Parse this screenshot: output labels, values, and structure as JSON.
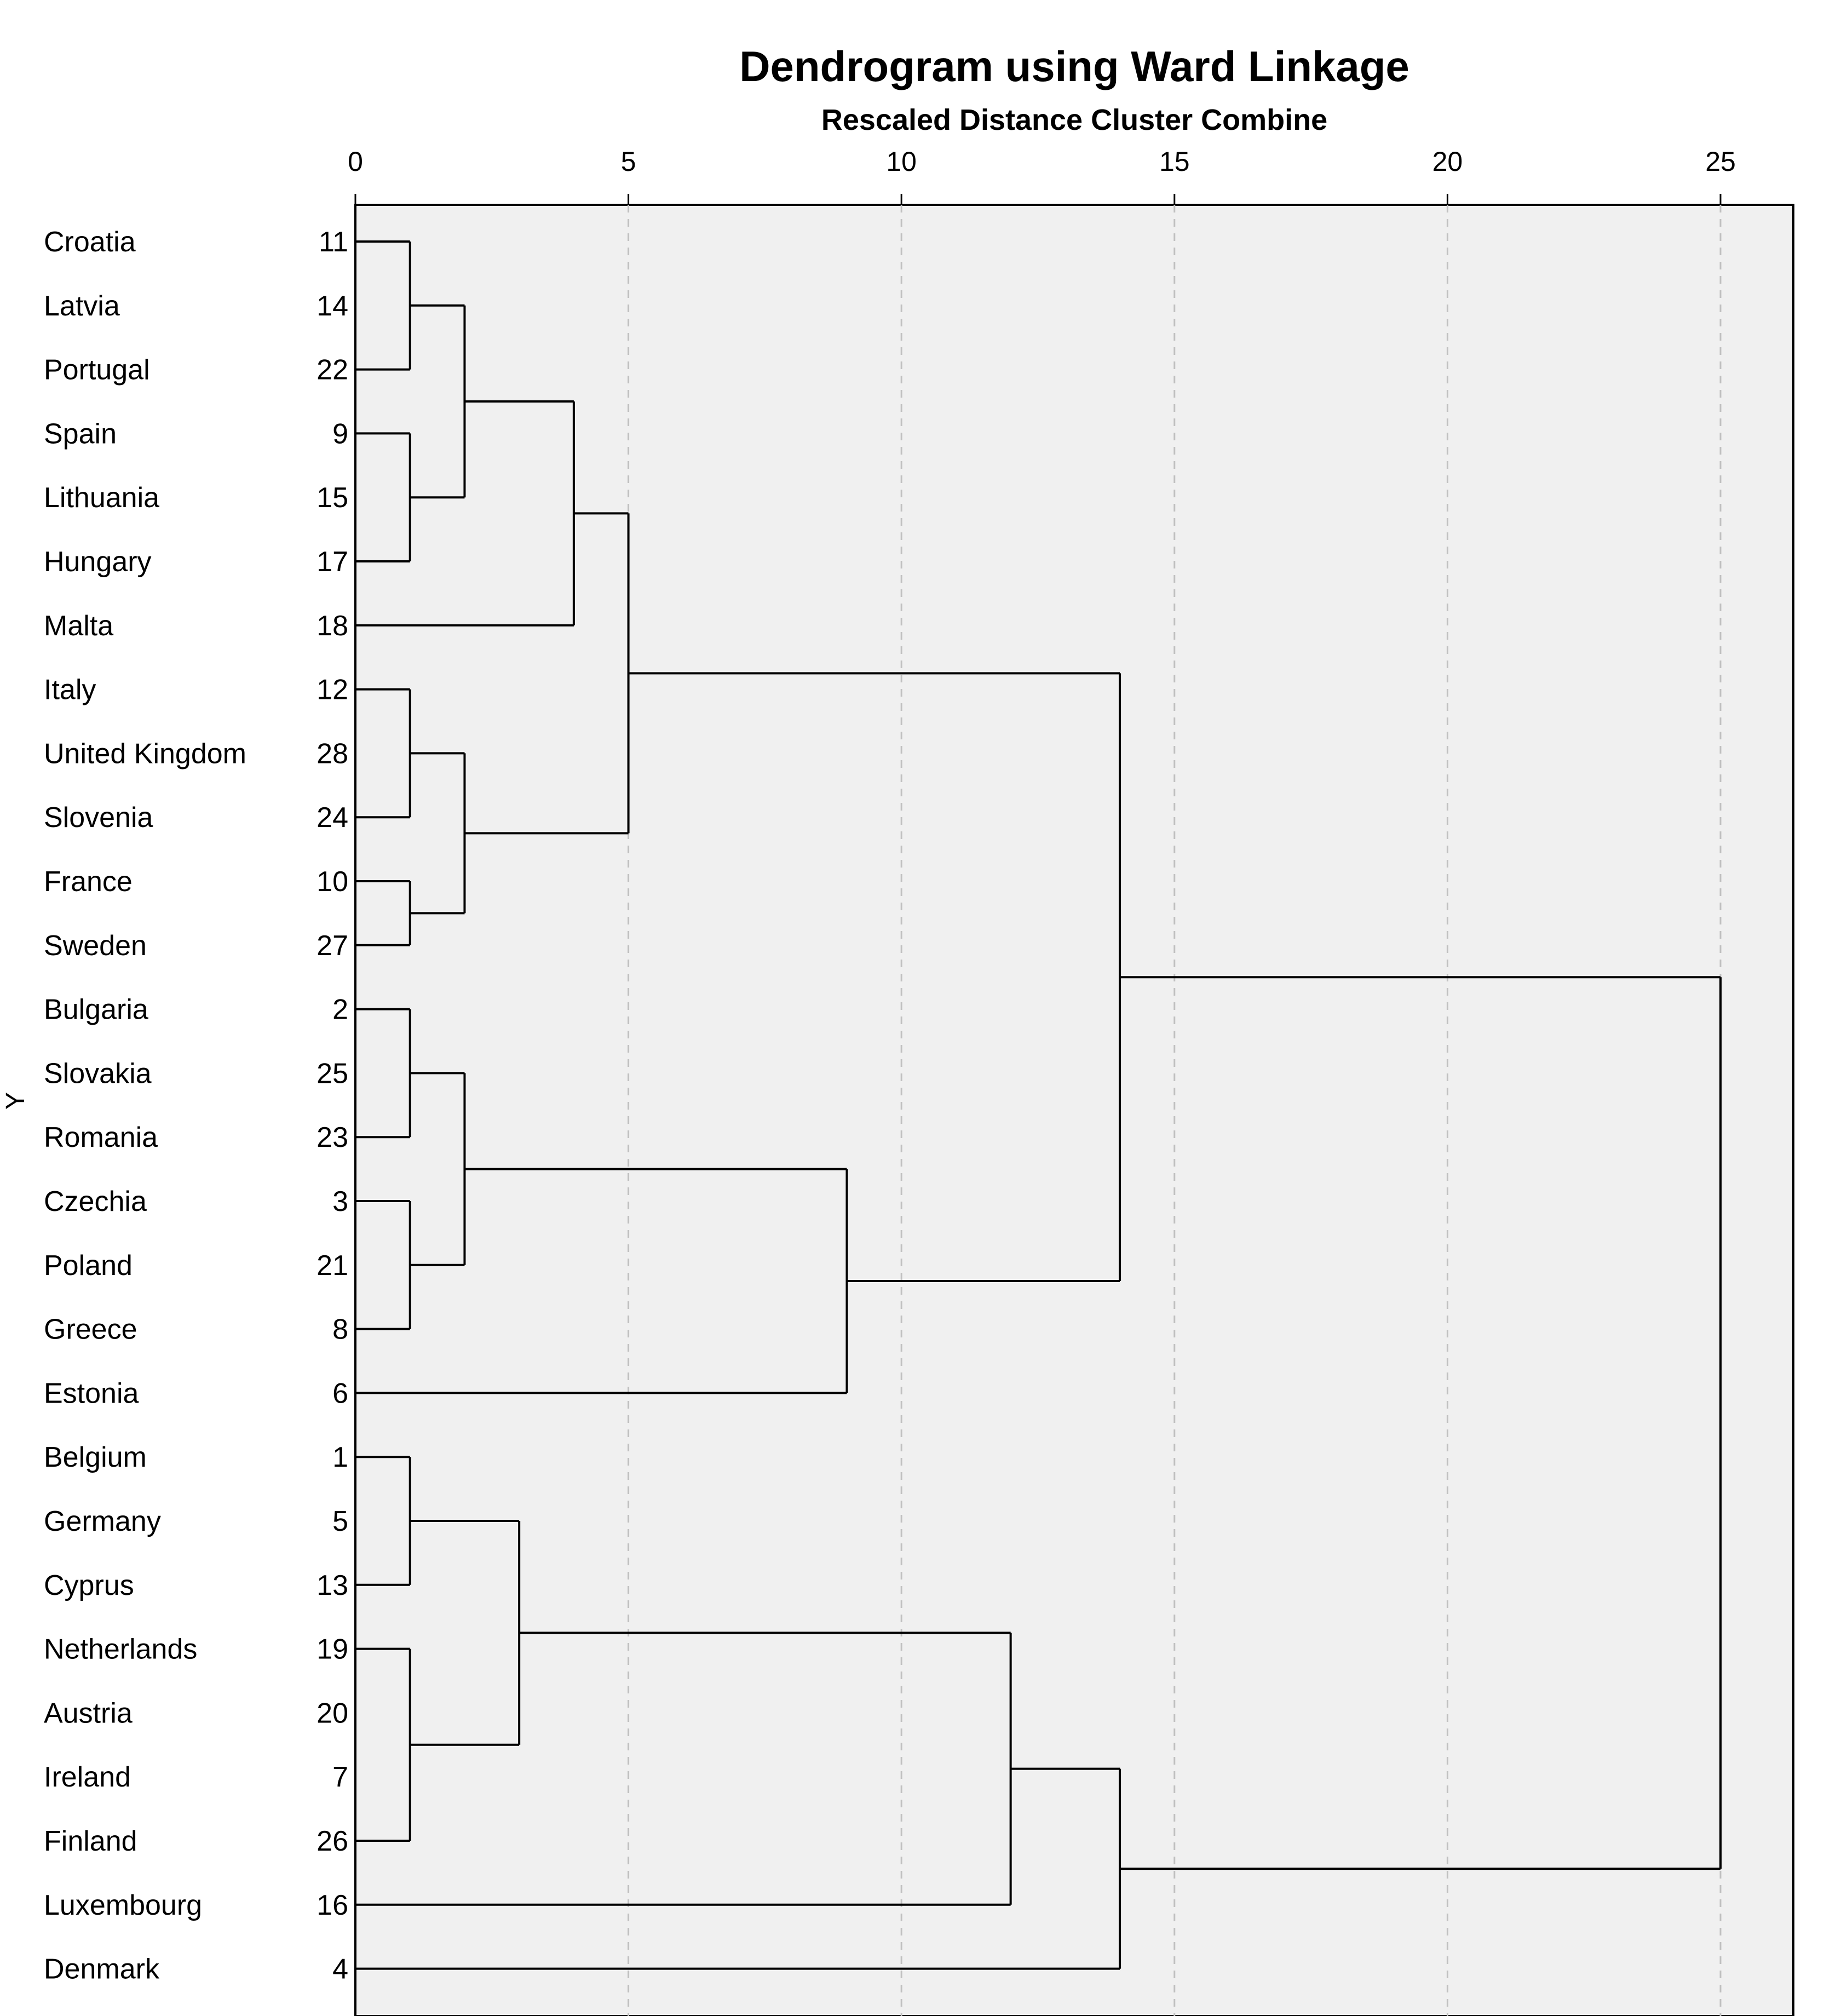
{
  "chart_data": {
    "type": "dendrogram",
    "title": "Dendrogram using Ward Linkage",
    "subtitle": "Rescaled Distance Cluster Combine",
    "ylabel": "Y",
    "xlim": [
      0,
      26.3
    ],
    "xticks": [
      0,
      5,
      10,
      15,
      20,
      25
    ],
    "grid": "dashed vertical",
    "leaves": [
      {
        "country": "Croatia",
        "case": "11"
      },
      {
        "country": "Latvia",
        "case": "14"
      },
      {
        "country": "Portugal",
        "case": "22"
      },
      {
        "country": "Spain",
        "case": "9"
      },
      {
        "country": "Lithuania",
        "case": "15"
      },
      {
        "country": "Hungary",
        "case": "17"
      },
      {
        "country": "Malta",
        "case": "18"
      },
      {
        "country": "Italy",
        "case": "12"
      },
      {
        "country": "United Kingdom",
        "case": "28"
      },
      {
        "country": "Slovenia",
        "case": "24"
      },
      {
        "country": "France",
        "case": "10"
      },
      {
        "country": "Sweden",
        "case": "27"
      },
      {
        "country": "Bulgaria",
        "case": "2"
      },
      {
        "country": "Slovakia",
        "case": "25"
      },
      {
        "country": "Romania",
        "case": "23"
      },
      {
        "country": "Czechia",
        "case": "3"
      },
      {
        "country": "Poland",
        "case": "21"
      },
      {
        "country": "Greece",
        "case": "8"
      },
      {
        "country": "Estonia",
        "case": "6"
      },
      {
        "country": "Belgium",
        "case": "1"
      },
      {
        "country": "Germany",
        "case": "5"
      },
      {
        "country": "Cyprus",
        "case": "13"
      },
      {
        "country": "Netherlands",
        "case": "19"
      },
      {
        "country": "Austria",
        "case": "20"
      },
      {
        "country": "Ireland",
        "case": "7"
      },
      {
        "country": "Finland",
        "case": "26"
      },
      {
        "country": "Luxembourg",
        "case": "16"
      },
      {
        "country": "Denmark",
        "case": "4"
      }
    ],
    "merges": [
      {
        "id": "A",
        "children": [
          0,
          2
        ],
        "mid": 1,
        "distance": 1
      },
      {
        "id": "B",
        "children": [
          3,
          5
        ],
        "mid": 4,
        "distance": 1
      },
      {
        "id": "C",
        "children": [
          "A",
          "B"
        ],
        "distance": 2
      },
      {
        "id": "D",
        "children": [
          "C",
          6
        ],
        "distance": 4
      },
      {
        "id": "E",
        "children": [
          7,
          9
        ],
        "mid": 8,
        "distance": 1
      },
      {
        "id": "F",
        "children": [
          10,
          11
        ],
        "distance": 1
      },
      {
        "id": "G",
        "children": [
          "E",
          "F"
        ],
        "distance": 2
      },
      {
        "id": "H",
        "children": [
          "D",
          "G"
        ],
        "distance": 5
      },
      {
        "id": "I",
        "children": [
          12,
          14
        ],
        "mid": 13,
        "distance": 1
      },
      {
        "id": "J",
        "children": [
          15,
          17
        ],
        "mid": 16,
        "distance": 1
      },
      {
        "id": "K",
        "children": [
          "I",
          "J"
        ],
        "distance": 2
      },
      {
        "id": "L",
        "children": [
          "K",
          18
        ],
        "distance": 9
      },
      {
        "id": "M",
        "children": [
          "H",
          "L"
        ],
        "distance": 14
      },
      {
        "id": "N",
        "children": [
          19,
          21
        ],
        "mid": 20,
        "distance": 1
      },
      {
        "id": "O",
        "children": [
          22,
          25
        ],
        "mid": 23.5,
        "distance": 1
      },
      {
        "id": "P",
        "children": [
          "N",
          "O"
        ],
        "distance": 3
      },
      {
        "id": "Q",
        "children": [
          "P",
          26
        ],
        "distance": 12
      },
      {
        "id": "R",
        "children": [
          "Q",
          27
        ],
        "distance": 14
      },
      {
        "id": "S",
        "children": [
          "M",
          "R"
        ],
        "distance": 25
      }
    ]
  }
}
